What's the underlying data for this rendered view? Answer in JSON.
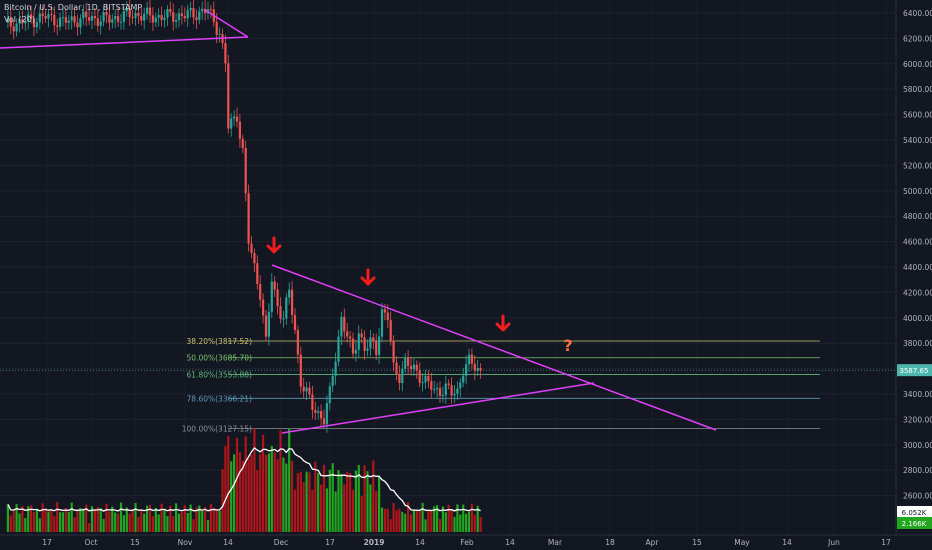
{
  "legend": {
    "symbol": "Bitcoin / U.S. Dollar, 1D, BITSTAMP",
    "volume_label": "Vol (20)"
  },
  "colors": {
    "background": "#131722",
    "up": "#26a69a",
    "down": "#ef5350",
    "volume_up": "#22a61f",
    "volume_down": "#b0151b",
    "trendline": "#e040fb",
    "arrow": "#f21d1d",
    "question": "#ff7043",
    "current_price": "#4db6ac"
  },
  "chart_data": {
    "type": "candlestick",
    "y_axis": {
      "ticks": [
        "6400.00",
        "6200.00",
        "6000.00",
        "5800.00",
        "5600.00",
        "5400.00",
        "5200.00",
        "5000.00",
        "4800.00",
        "4600.00",
        "4400.00",
        "4200.00",
        "4000.00",
        "3800.00",
        "3600.00",
        "3400.00",
        "3200.00",
        "3000.00",
        "2800.00",
        "2600.00"
      ],
      "range": [
        2550,
        6500
      ]
    },
    "x_axis": {
      "ticks": [
        "17",
        "Oct",
        "15",
        "Nov",
        "14",
        "Dec",
        "17",
        "2019",
        "14",
        "Feb",
        "14",
        "Mar",
        "18",
        "Apr",
        "15",
        "May",
        "14",
        "Jun",
        "17"
      ]
    },
    "current_price": "3587.65",
    "volume_labels": [
      "6.052K",
      "2.166K"
    ],
    "fib_levels": [
      {
        "label": "38.20%(3817.52)",
        "value": 3817.52,
        "color": "#c8c46e"
      },
      {
        "label": "50.00%(3685.70)",
        "value": 3685.7,
        "color": "#79c16b"
      },
      {
        "label": "61.80%(3553.88)",
        "value": 3553.88,
        "color": "#5fb87c"
      },
      {
        "label": "78.60%(3366.21)",
        "value": 3366.21,
        "color": "#5a9bb8"
      },
      {
        "label": "100.00%(3127.15)",
        "value": 3127.15,
        "color": "#8a8f99"
      }
    ],
    "annotations": [
      "?"
    ]
  }
}
